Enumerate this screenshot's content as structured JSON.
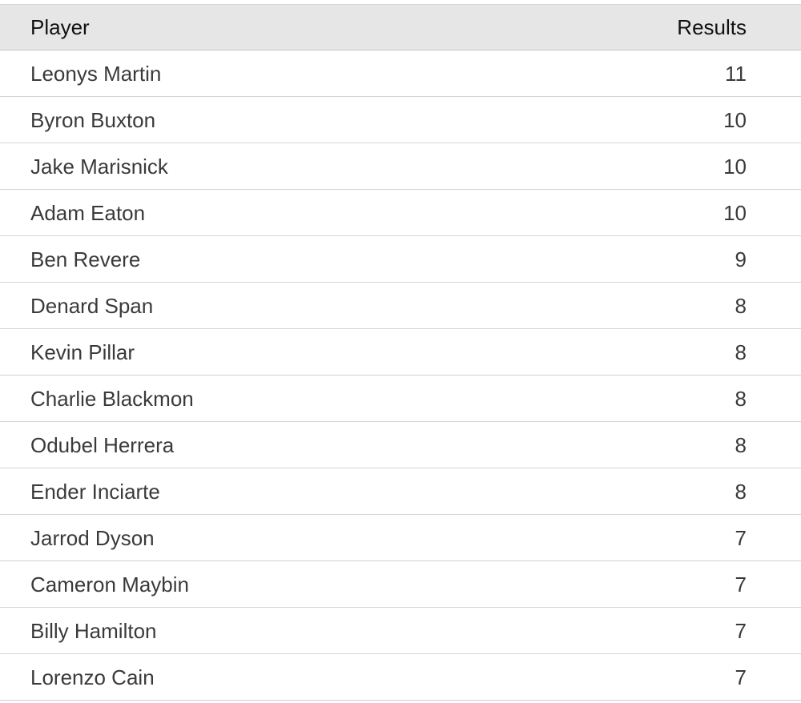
{
  "table": {
    "columns": {
      "player": "Player",
      "results": "Results"
    },
    "rows": [
      {
        "player": "Leonys Martin",
        "results": "11"
      },
      {
        "player": "Byron Buxton",
        "results": "10"
      },
      {
        "player": "Jake Marisnick",
        "results": "10"
      },
      {
        "player": "Adam Eaton",
        "results": "10"
      },
      {
        "player": "Ben Revere",
        "results": "9"
      },
      {
        "player": "Denard Span",
        "results": "8"
      },
      {
        "player": "Kevin Pillar",
        "results": "8"
      },
      {
        "player": "Charlie Blackmon",
        "results": "8"
      },
      {
        "player": "Odubel Herrera",
        "results": "8"
      },
      {
        "player": "Ender Inciarte",
        "results": "8"
      },
      {
        "player": "Jarrod Dyson",
        "results": "7"
      },
      {
        "player": "Cameron Maybin",
        "results": "7"
      },
      {
        "player": "Billy Hamilton",
        "results": "7"
      },
      {
        "player": "Lorenzo Cain",
        "results": "7"
      }
    ]
  }
}
